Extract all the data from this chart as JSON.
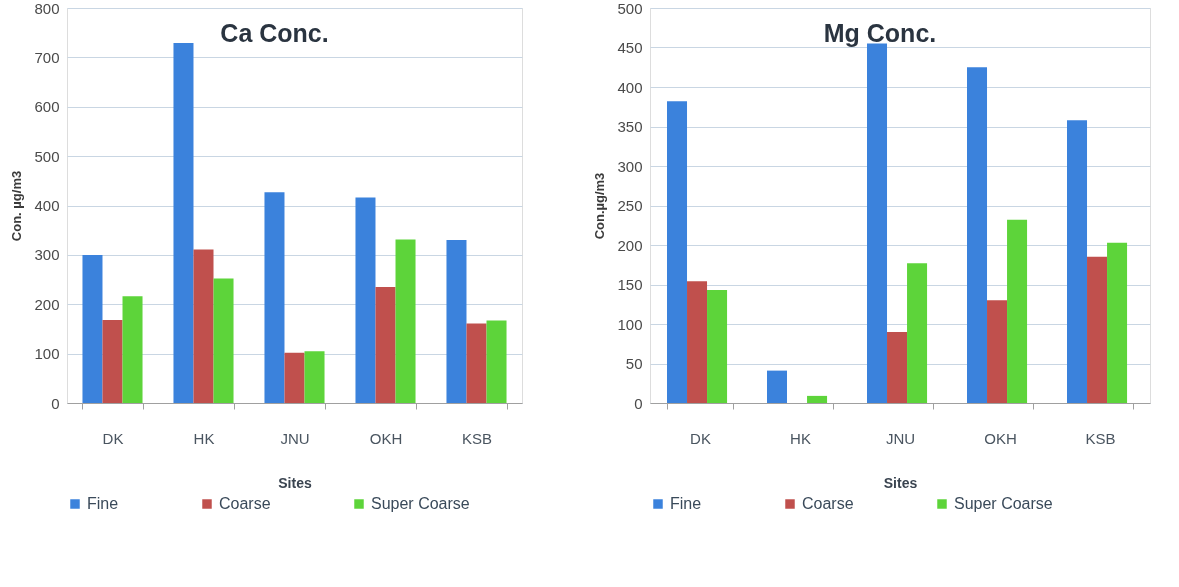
{
  "chart_data": [
    {
      "type": "bar",
      "title": "Ca Conc.",
      "xlabel": "Sites",
      "ylabel": "Con. µg/m3",
      "categories": [
        "DK",
        "HK",
        "JNU",
        "OKH",
        "KSB"
      ],
      "series": [
        {
          "name": "Fine",
          "color": "#3b82dc",
          "values": [
            300,
            729,
            427,
            416,
            330
          ]
        },
        {
          "name": "Coarse",
          "color": "#c0504d",
          "values": [
            168,
            311,
            102,
            235,
            161
          ]
        },
        {
          "name": "Super Coarse",
          "color": "#5dd43a",
          "values": [
            216,
            252,
            105,
            331,
            167
          ]
        }
      ],
      "ylim": [
        0,
        800
      ],
      "yticks": [
        0,
        100,
        200,
        300,
        400,
        500,
        600,
        700,
        800
      ],
      "grid": "y",
      "legend": "bottom"
    },
    {
      "type": "bar",
      "title": "Mg Conc.",
      "xlabel": "Sites",
      "ylabel": "Con.µg/m3",
      "categories": [
        "DK",
        "HK",
        "JNU",
        "OKH",
        "KSB"
      ],
      "series": [
        {
          "name": "Fine",
          "color": "#3b82dc",
          "values": [
            382,
            41,
            455,
            425,
            358
          ]
        },
        {
          "name": "Coarse",
          "color": "#c0504d",
          "values": [
            154,
            null,
            90,
            130,
            185
          ]
        },
        {
          "name": "Super Coarse",
          "color": "#5dd43a",
          "values": [
            143,
            9,
            177,
            232,
            203
          ]
        }
      ],
      "ylim": [
        0,
        500
      ],
      "yticks": [
        0,
        50,
        100,
        150,
        200,
        250,
        300,
        350,
        400,
        450,
        500
      ],
      "grid": "y",
      "legend": "bottom"
    }
  ]
}
